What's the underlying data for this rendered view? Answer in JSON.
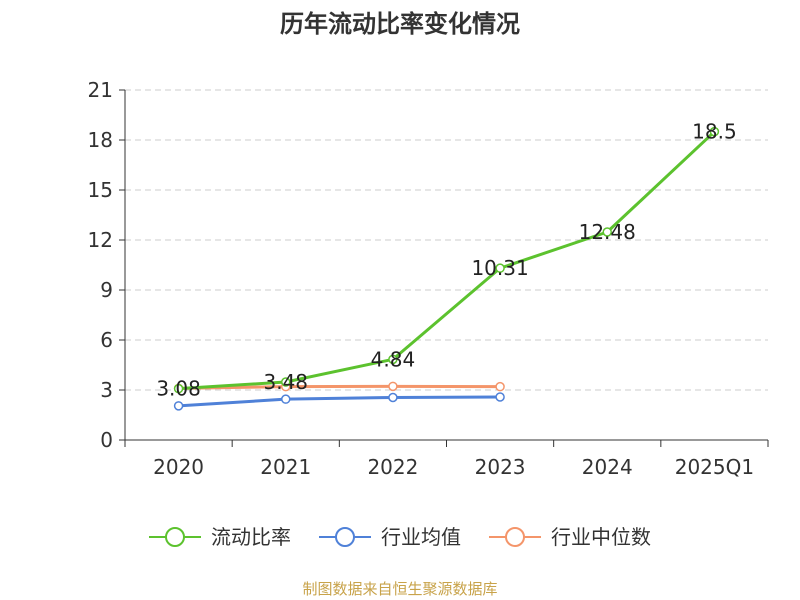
{
  "chart_data": {
    "type": "line",
    "title": "历年流动比率变化情况",
    "categories": [
      "2020",
      "2021",
      "2022",
      "2023",
      "2024",
      "2025Q1"
    ],
    "yticks": [
      0,
      3,
      6,
      9,
      12,
      15,
      18,
      21
    ],
    "ylim": [
      0,
      21
    ],
    "grid": true,
    "legend_position": "bottom",
    "series": [
      {
        "name": "流动比率",
        "color": "#5cc22e",
        "values": [
          3.08,
          3.48,
          4.84,
          10.31,
          12.48,
          18.5
        ],
        "labels": [
          "3.08",
          "3.48",
          "4.84",
          "10.31",
          "12.48",
          "18.5"
        ]
      },
      {
        "name": "行业均值",
        "color": "#4f81d8",
        "values": [
          2.05,
          2.45,
          2.55,
          2.58,
          null,
          null
        ]
      },
      {
        "name": "行业中位数",
        "color": "#f4956a",
        "values": [
          3.1,
          3.2,
          3.22,
          3.2,
          null,
          null
        ]
      }
    ]
  },
  "source": "制图数据来自恒生聚源数据库"
}
